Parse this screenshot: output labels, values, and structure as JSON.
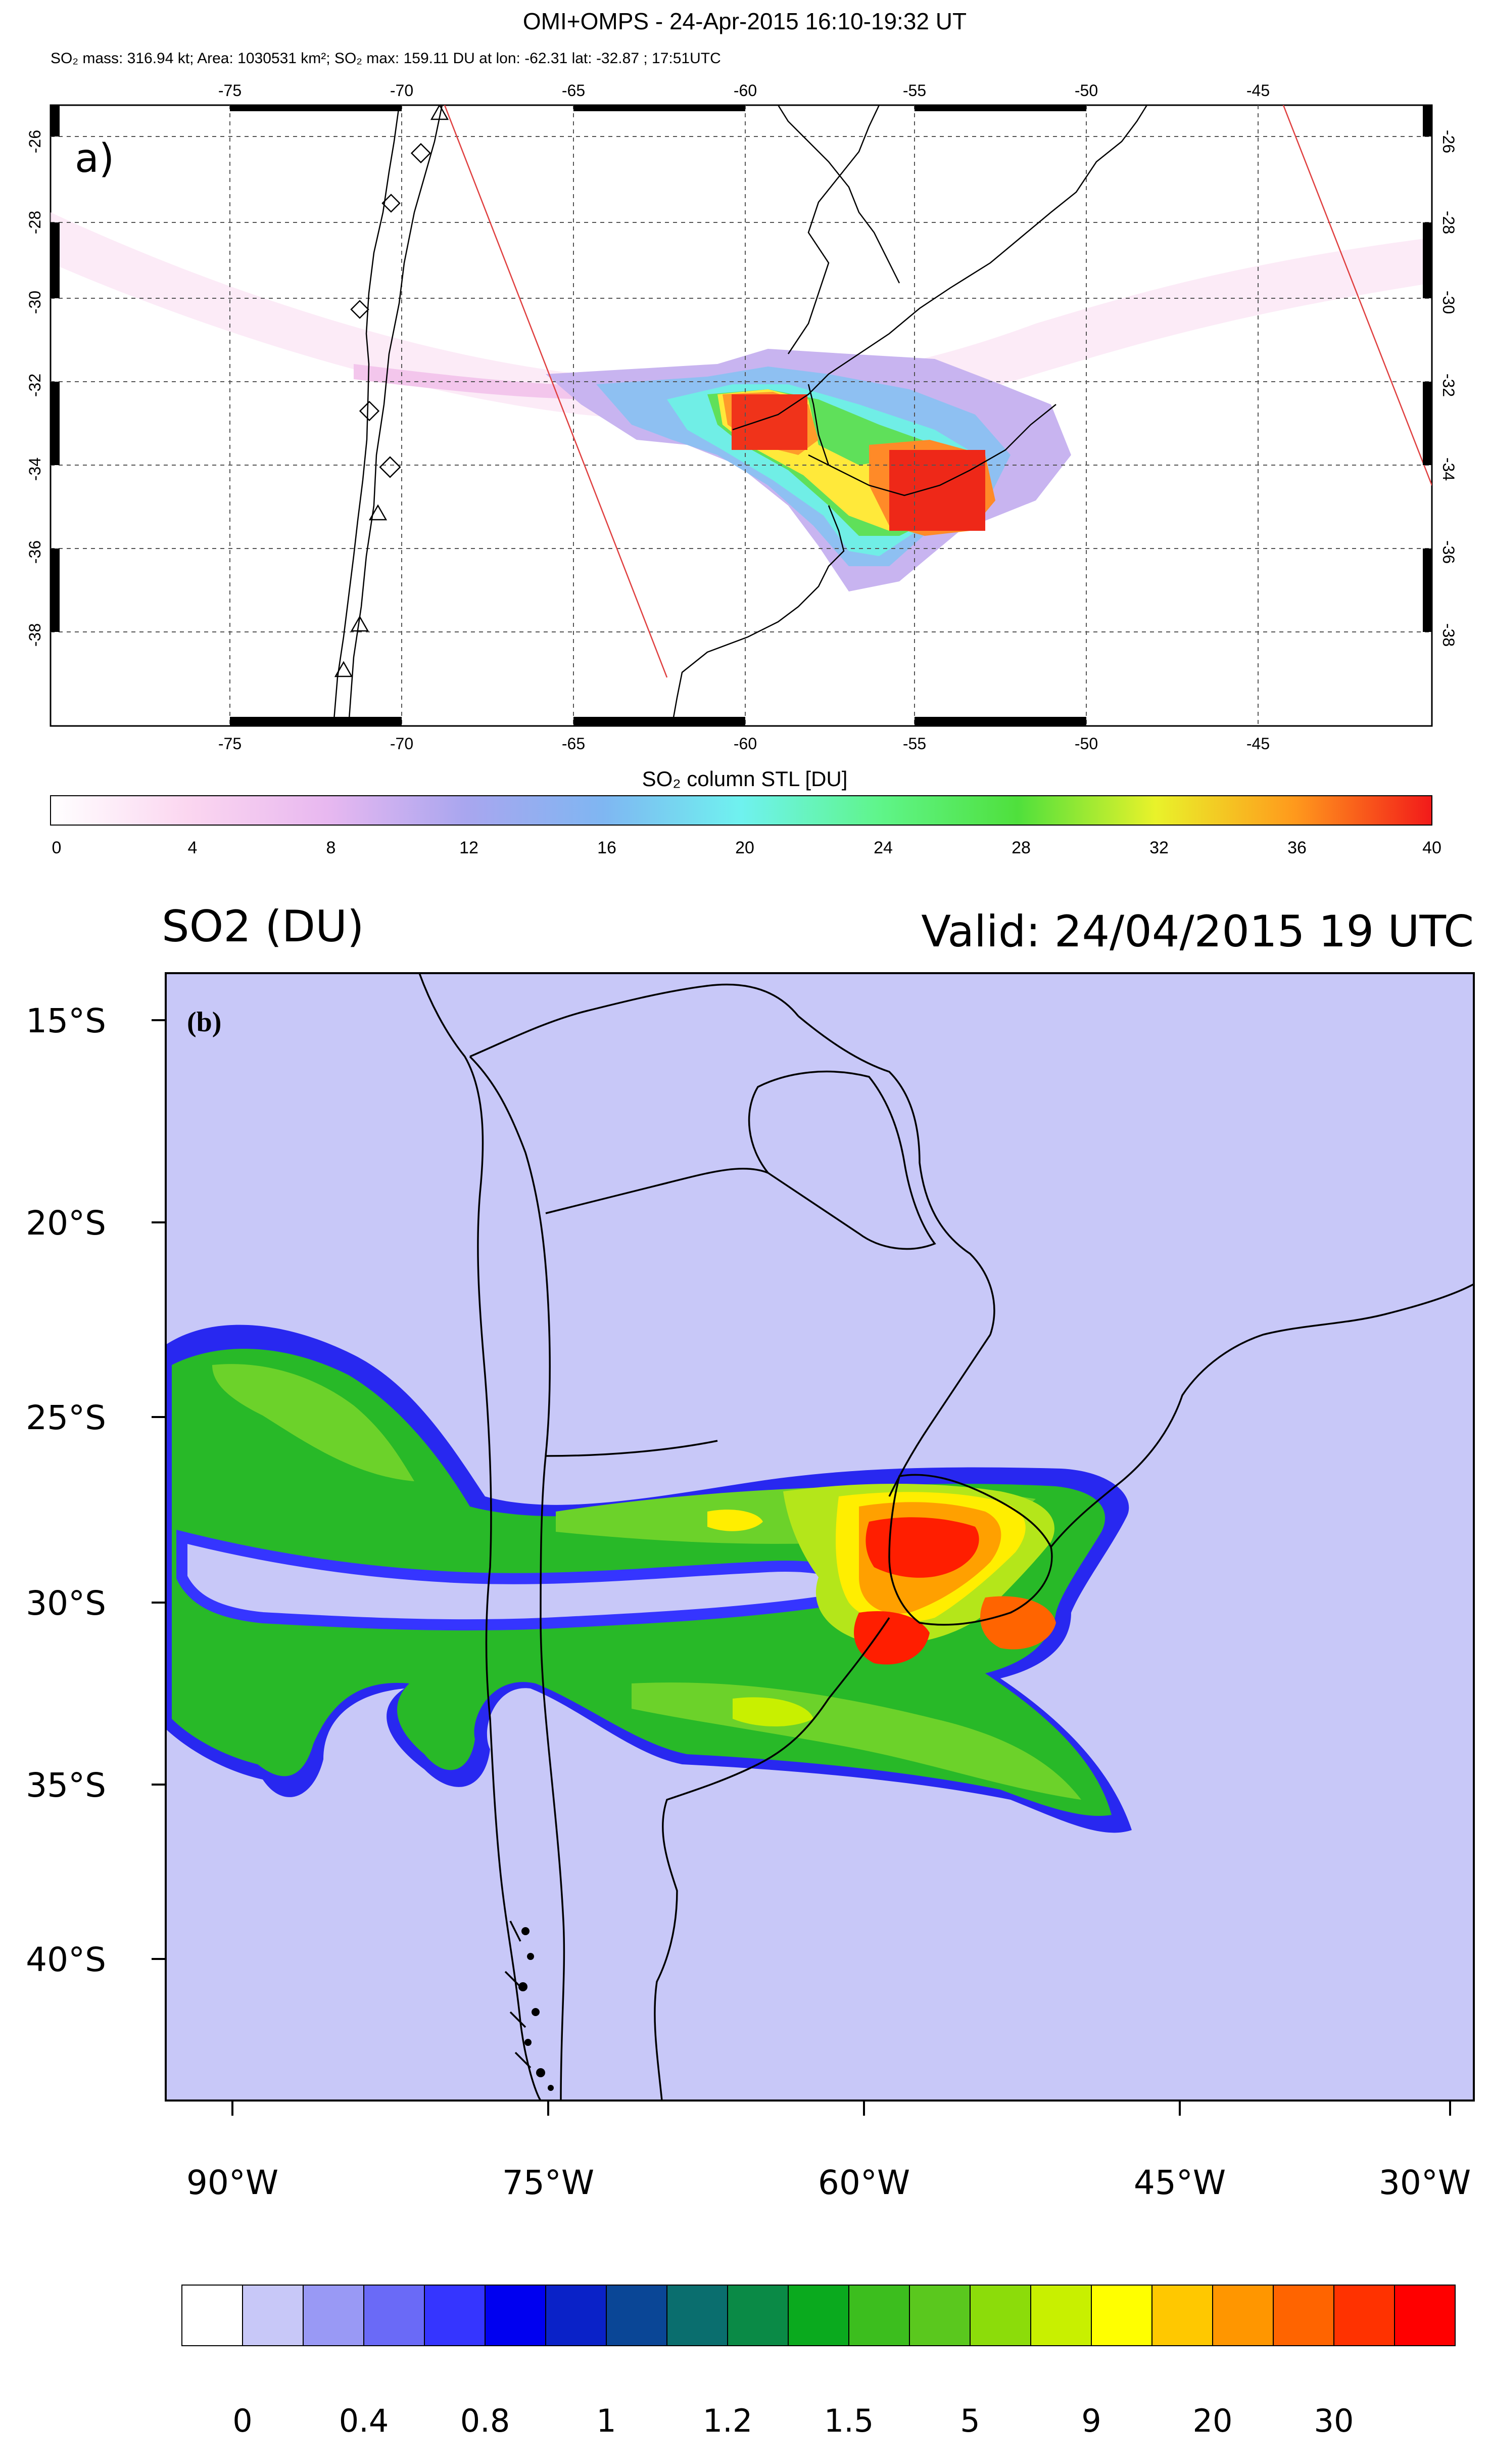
{
  "panel_a": {
    "title": "OMI+OMPS - 24-Apr-2015 16:10-19:32 UT",
    "subtitle": "SO₂ mass: 316.94 kt; Area: 1030531 km²; SO₂ max: 159.11 DU at lon: -62.31 lat: -32.87 ; 17:51UTC",
    "panel_label": "a)",
    "lon_ticks": [
      "-75",
      "-70",
      "-65",
      "-60",
      "-55",
      "-50",
      "-45"
    ],
    "lat_ticks": [
      "-26",
      "-28",
      "-30",
      "-32",
      "-34",
      "-36",
      "-38"
    ],
    "colorbar_label": "SO₂ column STL [DU]",
    "colorbar_ticks": [
      "0",
      "4",
      "8",
      "12",
      "16",
      "20",
      "24",
      "28",
      "32",
      "36",
      "40"
    ]
  },
  "panel_b": {
    "title_left": "SO2 (DU)",
    "title_right": "Valid: 24/04/2015  19 UTC",
    "panel_label": "(b)",
    "background_color": "#c8c8f8",
    "lat_ticks": [
      "15°S",
      "20°S",
      "25°S",
      "30°S",
      "35°S",
      "40°S"
    ],
    "lon_ticks": [
      "90°W",
      "75°W",
      "60°W",
      "45°W",
      "30°W"
    ],
    "colorbar_ticks": [
      "0",
      "0.4",
      "0.8",
      "1",
      "1.2",
      "1.5",
      "5",
      "9",
      "20",
      "30"
    ],
    "colorbar_colors": [
      "#ffffff",
      "#c8c8f8",
      "#9999f5",
      "#6a6af7",
      "#3535ff",
      "#0000f0",
      "#0a22c8",
      "#0a4696",
      "#0a6e6e",
      "#0a8a46",
      "#0aaa1e",
      "#3cbe1e",
      "#5ac81e",
      "#8cdc0a",
      "#c8f000",
      "#ffff00",
      "#ffc800",
      "#ff9600",
      "#ff6400",
      "#ff3200",
      "#ff0000"
    ]
  }
}
